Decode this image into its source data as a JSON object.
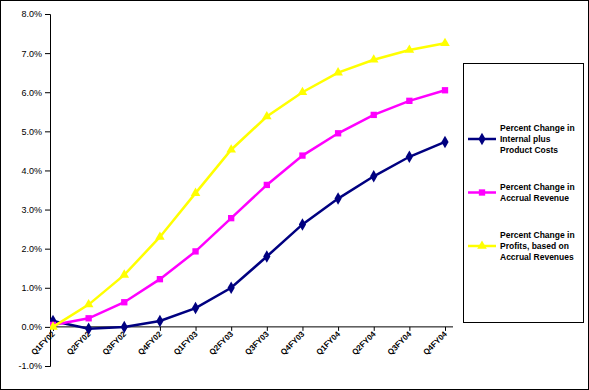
{
  "chart_data": {
    "type": "line",
    "categories": [
      "Q1FY02",
      "Q2FY02",
      "Q3FY02",
      "Q4FY02",
      "Q1FY03",
      "Q2FY03",
      "Q3FY03",
      "Q4FY03",
      "Q1FY04",
      "Q2FY04",
      "Q3FY04",
      "Q4FY04"
    ],
    "series": [
      {
        "name": "Percent Change in Internal plus Product Costs",
        "color": "#000080",
        "marker": "diamond",
        "values": [
          0.15,
          -0.05,
          0.0,
          0.15,
          0.48,
          1.0,
          1.8,
          2.62,
          3.28,
          3.85,
          4.35,
          4.73
        ]
      },
      {
        "name": "Percent Change in Accrual Revenue",
        "color": "#ff00ff",
        "marker": "square",
        "values": [
          0.05,
          0.22,
          0.63,
          1.22,
          1.93,
          2.78,
          3.63,
          4.38,
          4.95,
          5.42,
          5.78,
          6.05
        ]
      },
      {
        "name": "Percent Change in Profits, based on Accrual Revenues",
        "color": "#ffff00",
        "marker": "triangle",
        "values": [
          0.0,
          0.57,
          1.33,
          2.3,
          3.42,
          4.53,
          5.38,
          6.0,
          6.5,
          6.83,
          7.08,
          7.25
        ]
      }
    ],
    "ylim": [
      -1,
      8
    ],
    "yticks": [
      {
        "value": -1,
        "label": "-1.0%"
      },
      {
        "value": 0,
        "label": "0.0%"
      },
      {
        "value": 1,
        "label": "1.0%"
      },
      {
        "value": 2,
        "label": "2.0%"
      },
      {
        "value": 3,
        "label": "3.0%"
      },
      {
        "value": 4,
        "label": "4.0%"
      },
      {
        "value": 5,
        "label": "5.0%"
      },
      {
        "value": 6,
        "label": "6.0%"
      },
      {
        "value": 7,
        "label": "7.0%"
      },
      {
        "value": 8,
        "label": "8.0%"
      }
    ],
    "grid": false,
    "legend": "right"
  }
}
